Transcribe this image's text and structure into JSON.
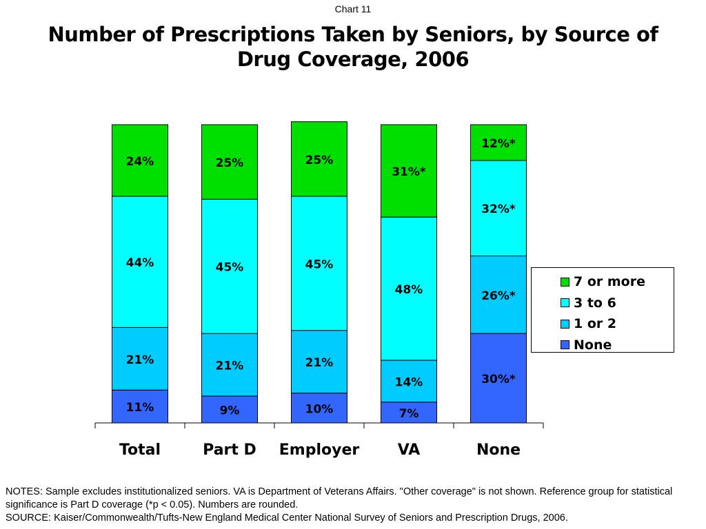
{
  "header": {
    "kicker": "Chart 11"
  },
  "chart_data": {
    "type": "bar",
    "stacked": true,
    "title": "Number of Prescriptions Taken by Seniors, by Source of Drug Coverage, 2006",
    "xlabel": "",
    "ylabel": "",
    "ylim": [
      0,
      100
    ],
    "grid": false,
    "legend_position": "right",
    "categories": [
      "Total",
      "Part D",
      "Employer",
      "VA",
      "None"
    ],
    "series": [
      {
        "name": "None",
        "color": "#3366ff",
        "values": [
          11,
          9,
          10,
          7,
          30
        ],
        "labels": [
          "11%",
          "9%",
          "10%",
          "7%",
          "30%*"
        ]
      },
      {
        "name": "1 or 2",
        "color": "#00ccff",
        "values": [
          21,
          21,
          21,
          14,
          26
        ],
        "labels": [
          "21%",
          "21%",
          "21%",
          "14%",
          "26%*"
        ]
      },
      {
        "name": "3 to 6",
        "color": "#00ffff",
        "values": [
          44,
          45,
          45,
          48,
          32
        ],
        "labels": [
          "44%",
          "45%",
          "45%",
          "48%",
          "32%*"
        ]
      },
      {
        "name": "7 or more",
        "color": "#00e000",
        "values": [
          24,
          25,
          25,
          31,
          12
        ],
        "labels": [
          "24%",
          "25%",
          "25%",
          "31%*",
          "12%*"
        ]
      }
    ],
    "legend_order": [
      "7 or more",
      "3 to 6",
      "1 or 2",
      "None"
    ]
  },
  "footer": {
    "notes": "NOTES: Sample excludes institutionalized seniors. VA is Department of Veterans Affairs. \"Other coverage\" is not shown. Reference group for statistical significance is Part D coverage (*p < 0.05). Numbers are rounded.",
    "source": "SOURCE: Kaiser/Commonwealth/Tufts-New England Medical Center National Survey of Seniors and Prescription Drugs, 2006."
  }
}
